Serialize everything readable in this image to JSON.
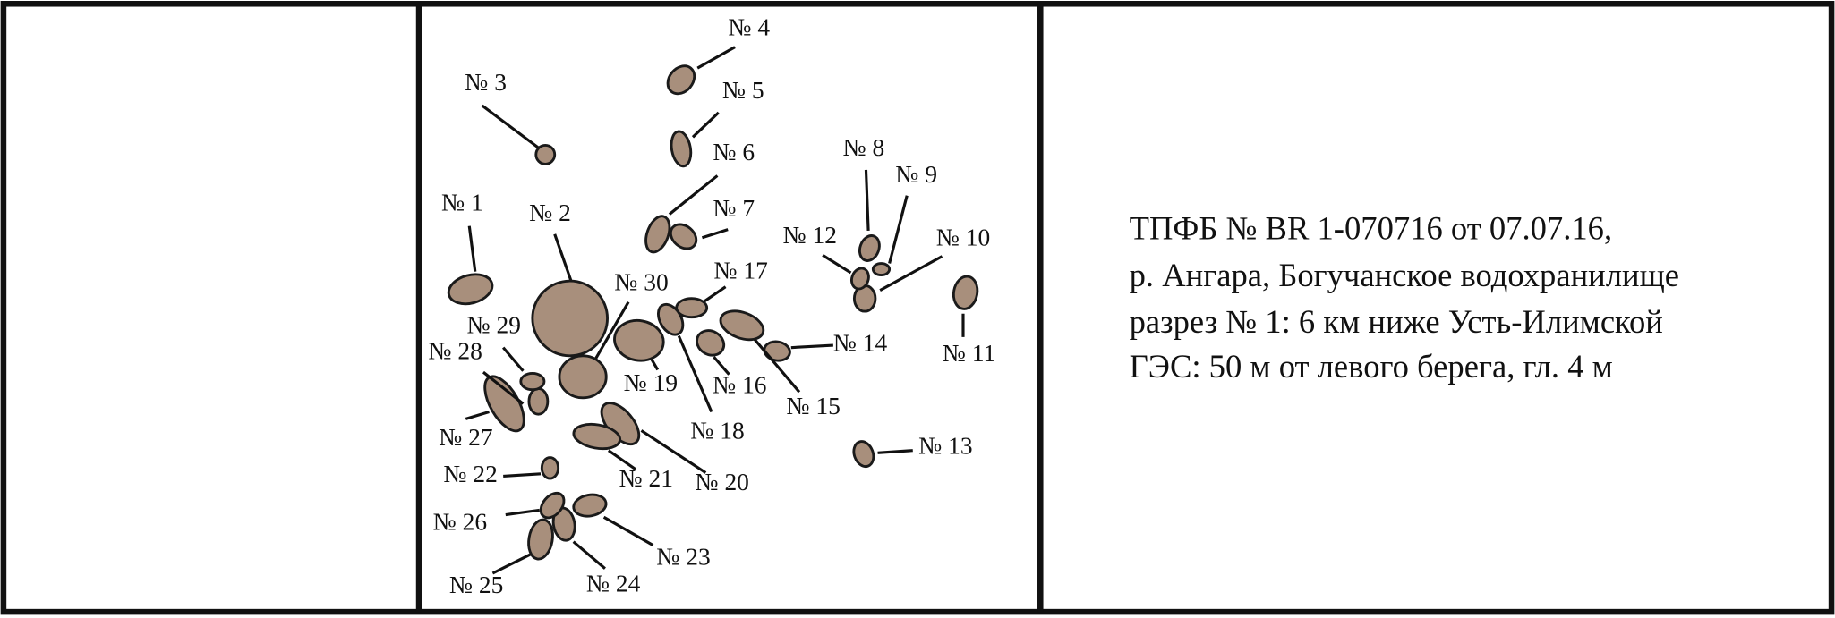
{
  "figure": {
    "labels": [
      "№ 1",
      "№ 2",
      "№ 3",
      "№ 4",
      "№ 5",
      "№ 6",
      "№ 7",
      "№ 8",
      "№ 9",
      "№ 10",
      "№ 11",
      "№ 12",
      "№ 13",
      "№ 14",
      "№ 15",
      "№ 16",
      "№ 17",
      "№ 18",
      "№ 19",
      "№ 20",
      "№ 21",
      "№ 22",
      "№ 23",
      "№ 24",
      "№ 25",
      "№ 26",
      "№ 27",
      "№ 28",
      "№ 29",
      "№ 30"
    ],
    "caption_lines": [
      "ТПФБ № BR 1-070716 от 07.07.16,",
      "р. Ангара, Богучанское водохранилище",
      "разрез № 1: 6 км ниже Усть-Илимской",
      "ГЭС: 50 м от левого берега, гл. 4 м"
    ]
  }
}
